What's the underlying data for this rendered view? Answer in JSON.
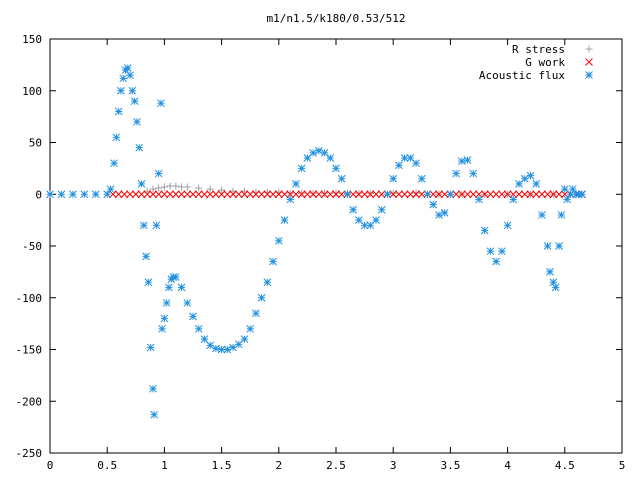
{
  "chart_data": {
    "type": "scatter",
    "title": "m1/n1.5/k180/0.53/512",
    "xlabel": "",
    "ylabel": "",
    "xlim": [
      0,
      5
    ],
    "ylim": [
      -250,
      150
    ],
    "x_ticks": [
      "0",
      "0.5",
      "1",
      "1.5",
      "2",
      "2.5",
      "3",
      "3.5",
      "4",
      "4.5",
      "5"
    ],
    "y_ticks": [
      "150",
      "100",
      "50",
      "0",
      "-50",
      "-100",
      "-150",
      "-200",
      "-250"
    ],
    "grid": false,
    "legend_position": "top-right",
    "series": [
      {
        "name": "R stress",
        "marker": "plus",
        "color": "#a0a0a0",
        "x": [
          0.85,
          0.9,
          0.95,
          1.0,
          1.05,
          1.1,
          1.15,
          1.2,
          1.3,
          1.4,
          1.5,
          1.6,
          1.7,
          1.8,
          1.9,
          2.0,
          2.1,
          2.2,
          2.3,
          2.4,
          2.5,
          2.6,
          2.7,
          2.8,
          3.0,
          3.2,
          3.4,
          3.6,
          3.8,
          4.0,
          4.2,
          4.4,
          4.6
        ],
        "y": [
          3,
          5,
          6,
          7,
          8,
          8,
          7,
          7,
          6,
          5,
          4,
          3,
          3,
          2,
          2,
          2,
          1,
          1,
          1,
          1,
          1,
          1,
          1,
          1,
          1,
          1,
          0,
          0,
          0,
          0,
          0,
          0,
          0
        ]
      },
      {
        "name": "G work",
        "marker": "cross",
        "color": "#ff0000",
        "x": [
          0.55,
          0.6,
          0.65,
          0.7,
          0.75,
          0.8,
          0.85,
          0.9,
          0.95,
          1.0,
          1.05,
          1.1,
          1.15,
          1.2,
          1.25,
          1.3,
          1.35,
          1.4,
          1.45,
          1.5,
          1.55,
          1.6,
          1.65,
          1.7,
          1.75,
          1.8,
          1.85,
          1.9,
          1.95,
          2.0,
          2.05,
          2.1,
          2.15,
          2.2,
          2.25,
          2.3,
          2.35,
          2.4,
          2.45,
          2.5,
          2.55,
          2.6,
          2.65,
          2.7,
          2.75,
          2.8,
          2.85,
          2.9,
          2.95,
          3.0,
          3.05,
          3.1,
          3.15,
          3.2,
          3.25,
          3.3,
          3.35,
          3.4,
          3.45,
          3.5,
          3.55,
          3.6,
          3.65,
          3.7,
          3.75,
          3.8,
          3.85,
          3.9,
          3.95,
          4.0,
          4.05,
          4.1,
          4.15,
          4.2,
          4.25,
          4.3,
          4.35,
          4.4,
          4.45,
          4.5,
          4.55,
          4.6,
          4.65
        ],
        "y": [
          0,
          0,
          0,
          0,
          0,
          0,
          0,
          0,
          0,
          0,
          0,
          0,
          0,
          0,
          0,
          0,
          0,
          0,
          0,
          0,
          0,
          0,
          0,
          0,
          0,
          0,
          0,
          0,
          0,
          0,
          0,
          0,
          0,
          0,
          0,
          0,
          0,
          0,
          0,
          0,
          0,
          0,
          0,
          0,
          0,
          0,
          0,
          0,
          0,
          0,
          0,
          0,
          0,
          0,
          0,
          0,
          0,
          0,
          0,
          0,
          0,
          0,
          0,
          0,
          0,
          0,
          0,
          0,
          0,
          0,
          0,
          0,
          0,
          0,
          0,
          0,
          0,
          0,
          0,
          0,
          0,
          0,
          0
        ]
      },
      {
        "name": "Acoustic flux",
        "marker": "star",
        "color": "#1f8fdf",
        "x": [
          0.0,
          0.1,
          0.2,
          0.3,
          0.4,
          0.5,
          0.53,
          0.56,
          0.58,
          0.6,
          0.62,
          0.64,
          0.66,
          0.68,
          0.7,
          0.72,
          0.74,
          0.76,
          0.78,
          0.8,
          0.82,
          0.84,
          0.86,
          0.88,
          0.9,
          0.91,
          0.93,
          0.95,
          0.97,
          0.98,
          1.0,
          1.02,
          1.04,
          1.06,
          1.08,
          1.1,
          1.15,
          1.2,
          1.25,
          1.3,
          1.35,
          1.4,
          1.45,
          1.5,
          1.55,
          1.6,
          1.65,
          1.7,
          1.75,
          1.8,
          1.85,
          1.9,
          1.95,
          2.0,
          2.05,
          2.1,
          2.15,
          2.2,
          2.25,
          2.3,
          2.35,
          2.4,
          2.45,
          2.5,
          2.55,
          2.6,
          2.65,
          2.7,
          2.75,
          2.8,
          2.85,
          2.9,
          2.95,
          3.0,
          3.05,
          3.1,
          3.15,
          3.2,
          3.25,
          3.3,
          3.35,
          3.4,
          3.45,
          3.5,
          3.55,
          3.6,
          3.65,
          3.7,
          3.75,
          3.8,
          3.85,
          3.9,
          3.95,
          4.0,
          4.05,
          4.1,
          4.15,
          4.2,
          4.25,
          4.3,
          4.35,
          4.37,
          4.4,
          4.42,
          4.45,
          4.47,
          4.5,
          4.52,
          4.55,
          4.57,
          4.6,
          4.62,
          4.65
        ],
        "y": [
          0,
          0,
          0,
          0,
          0,
          0,
          5,
          30,
          55,
          80,
          100,
          112,
          120,
          122,
          115,
          100,
          90,
          70,
          45,
          10,
          -30,
          -60,
          -85,
          -148,
          -188,
          -213,
          -30,
          20,
          88,
          -130,
          -120,
          -105,
          -90,
          -82,
          -80,
          -80,
          -90,
          -105,
          -118,
          -130,
          -140,
          -146,
          -149,
          -150,
          -150,
          -148,
          -145,
          -140,
          -130,
          -115,
          -100,
          -85,
          -65,
          -45,
          -25,
          -5,
          10,
          25,
          35,
          40,
          42,
          40,
          35,
          25,
          15,
          0,
          -15,
          -25,
          -30,
          -30,
          -25,
          -15,
          0,
          15,
          28,
          35,
          35,
          30,
          15,
          0,
          -10,
          -20,
          -18,
          0,
          20,
          32,
          33,
          20,
          -5,
          -35,
          -55,
          -65,
          -55,
          -30,
          -5,
          10,
          15,
          18,
          10,
          -20,
          -50,
          -75,
          -85,
          -90,
          -50,
          -20,
          5,
          -5,
          0,
          5,
          0,
          0,
          0
        ]
      }
    ]
  }
}
